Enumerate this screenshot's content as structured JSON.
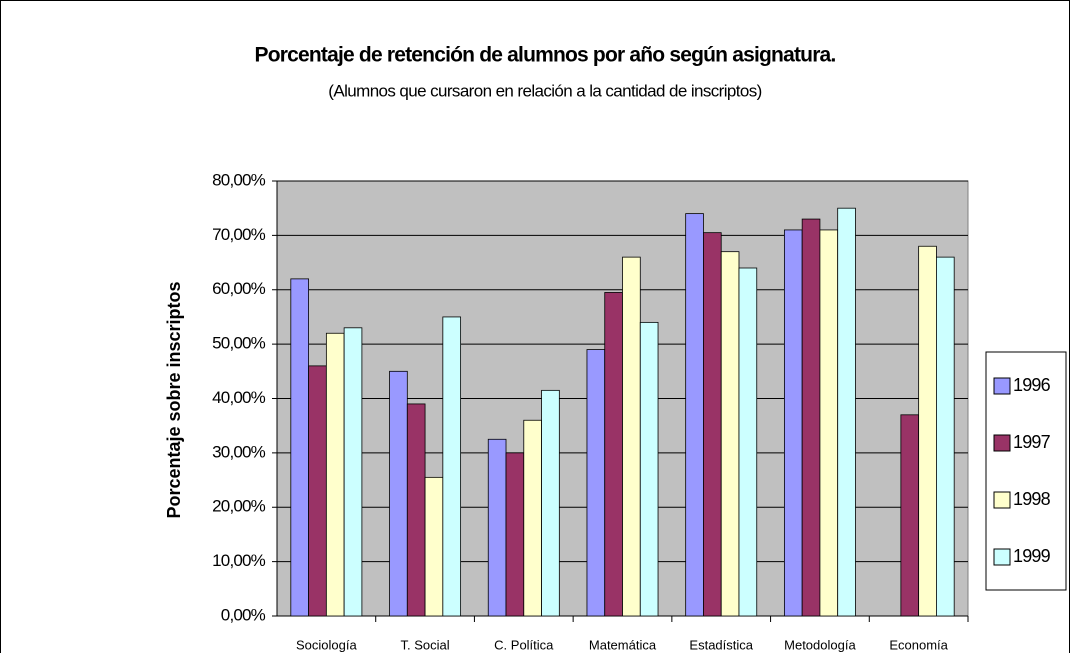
{
  "chart_data": {
    "type": "bar",
    "title": "Porcentaje de retención de alumnos por año según asignatura.",
    "subtitle": "(Alumnos que cursaron en relación a la cantidad de inscriptos)",
    "y_label": "Porcentaje sobre inscriptos",
    "categories": [
      "Sociología",
      "T. Social",
      "C. Política",
      "Matemática",
      "Estadística",
      "Metodología",
      "Economía"
    ],
    "series": [
      {
        "name": "1996",
        "color": "#9999ff",
        "values": [
          62,
          45,
          32.5,
          49,
          74,
          71,
          null
        ]
      },
      {
        "name": "1997",
        "color": "#993366",
        "values": [
          46,
          39,
          30,
          59.5,
          70.5,
          73,
          37
        ]
      },
      {
        "name": "1998",
        "color": "#ffffcc",
        "values": [
          52,
          25.5,
          36,
          66,
          67,
          71,
          68
        ]
      },
      {
        "name": "1999",
        "color": "#ccffff",
        "values": [
          53,
          55,
          41.5,
          54,
          64,
          75,
          66
        ]
      }
    ],
    "ylim": [
      0,
      80
    ],
    "yticks": [
      {
        "value": 0,
        "label": "0,00%"
      },
      {
        "value": 10,
        "label": "10,00%"
      },
      {
        "value": 20,
        "label": "20,00%"
      },
      {
        "value": 30,
        "label": "30,00%"
      },
      {
        "value": 40,
        "label": "40,00%"
      },
      {
        "value": 50,
        "label": "50,00%"
      },
      {
        "value": 60,
        "label": "60,00%"
      },
      {
        "value": 70,
        "label": "70,00%"
      },
      {
        "value": 80,
        "label": "80,00%"
      }
    ],
    "grid": true,
    "legend": "right"
  }
}
